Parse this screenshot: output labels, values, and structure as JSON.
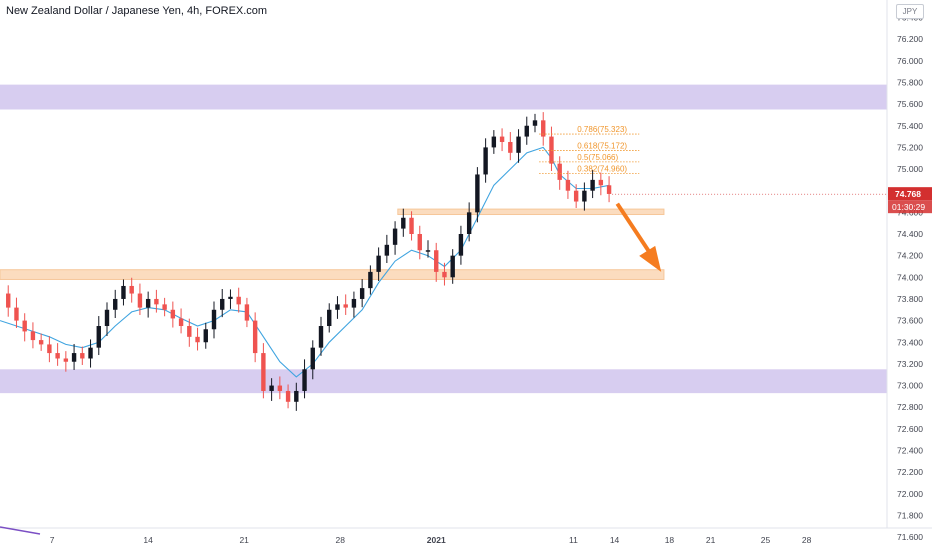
{
  "title": "New Zealand Dollar / Japanese Yen, 4h, FOREX.com",
  "currency_badge": "JPY",
  "colors": {
    "up_candle": "#131722",
    "down_candle": "#ef5350",
    "ma_line": "#3fa4e0",
    "resistance_zone": "#d7cdf0",
    "support_zone": "#fbdcbf",
    "fib": "#f0962c",
    "arrow": "#f57c1f",
    "price_badge": "#d32f2f"
  },
  "chart_data": {
    "type": "line",
    "title": "",
    "xlabel": "",
    "ylabel": "",
    "ylim": [
      71.4,
      76.5
    ],
    "y_ticks": [
      "76.400",
      "76.200",
      "76.000",
      "75.800",
      "75.600",
      "75.400",
      "75.200",
      "75.000",
      "74.800",
      "74.600",
      "74.400",
      "74.200",
      "74.000",
      "73.800",
      "73.600",
      "73.400",
      "73.200",
      "73.000",
      "72.800",
      "72.600",
      "72.400",
      "72.200",
      "72.000",
      "71.800",
      "71.600"
    ],
    "x_ticks": [
      {
        "label": "7",
        "day": 7
      },
      {
        "label": "14",
        "day": 14
      },
      {
        "label": "21",
        "day": 21
      },
      {
        "label": "28",
        "day": 28
      },
      {
        "label": "2021",
        "day": 35
      },
      {
        "label": "11",
        "day": 45
      },
      {
        "label": "14",
        "day": 48
      },
      {
        "label": "18",
        "day": 52
      },
      {
        "label": "21",
        "day": 55
      },
      {
        "label": "25",
        "day": 59
      },
      {
        "label": "28",
        "day": 62
      }
    ],
    "x_range": [
      3.2,
      65.6
    ],
    "close_path": [
      [
        3.2,
        73.85
      ],
      [
        3.8,
        73.72
      ],
      [
        4.4,
        73.6
      ],
      [
        5.0,
        73.5
      ],
      [
        5.6,
        73.42
      ],
      [
        6.2,
        73.38
      ],
      [
        6.8,
        73.3
      ],
      [
        7.4,
        73.25
      ],
      [
        8.0,
        73.22
      ],
      [
        8.6,
        73.3
      ],
      [
        9.2,
        73.25
      ],
      [
        9.8,
        73.35
      ],
      [
        10.4,
        73.55
      ],
      [
        11.0,
        73.7
      ],
      [
        11.6,
        73.8
      ],
      [
        12.2,
        73.92
      ],
      [
        12.8,
        73.85
      ],
      [
        13.4,
        73.72
      ],
      [
        14.0,
        73.8
      ],
      [
        14.6,
        73.75
      ],
      [
        15.2,
        73.7
      ],
      [
        15.8,
        73.62
      ],
      [
        16.4,
        73.55
      ],
      [
        17.0,
        73.45
      ],
      [
        17.6,
        73.4
      ],
      [
        18.2,
        73.52
      ],
      [
        18.8,
        73.7
      ],
      [
        19.4,
        73.8
      ],
      [
        20.0,
        73.82
      ],
      [
        20.6,
        73.75
      ],
      [
        21.2,
        73.6
      ],
      [
        21.8,
        73.3
      ],
      [
        22.4,
        72.95
      ],
      [
        23.0,
        73.0
      ],
      [
        23.6,
        72.95
      ],
      [
        24.2,
        72.85
      ],
      [
        24.8,
        72.95
      ],
      [
        25.4,
        73.15
      ],
      [
        26.0,
        73.35
      ],
      [
        26.6,
        73.55
      ],
      [
        27.2,
        73.7
      ],
      [
        27.8,
        73.75
      ],
      [
        28.4,
        73.72
      ],
      [
        29.0,
        73.8
      ],
      [
        29.6,
        73.9
      ],
      [
        30.2,
        74.05
      ],
      [
        30.8,
        74.2
      ],
      [
        31.4,
        74.3
      ],
      [
        32.0,
        74.45
      ],
      [
        32.6,
        74.55
      ],
      [
        33.2,
        74.4
      ],
      [
        33.8,
        74.25
      ],
      [
        34.4,
        74.25
      ],
      [
        35.0,
        74.05
      ],
      [
        35.6,
        74.0
      ],
      [
        36.2,
        74.2
      ],
      [
        36.8,
        74.4
      ],
      [
        37.4,
        74.6
      ],
      [
        38.0,
        74.95
      ],
      [
        38.6,
        75.2
      ],
      [
        39.2,
        75.3
      ],
      [
        39.8,
        75.25
      ],
      [
        40.4,
        75.15
      ],
      [
        41.0,
        75.3
      ],
      [
        41.6,
        75.4
      ],
      [
        42.2,
        75.45
      ],
      [
        42.8,
        75.3
      ],
      [
        43.4,
        75.05
      ],
      [
        44.0,
        74.9
      ],
      [
        44.6,
        74.8
      ],
      [
        45.2,
        74.7
      ],
      [
        45.8,
        74.8
      ],
      [
        46.4,
        74.9
      ],
      [
        47.0,
        74.85
      ],
      [
        47.6,
        74.77
      ]
    ],
    "ma_path": [
      [
        3.2,
        73.6
      ],
      [
        4.4,
        73.55
      ],
      [
        5.6,
        73.5
      ],
      [
        6.8,
        73.45
      ],
      [
        8.0,
        73.38
      ],
      [
        9.2,
        73.35
      ],
      [
        10.4,
        73.4
      ],
      [
        11.6,
        73.55
      ],
      [
        12.8,
        73.68
      ],
      [
        14.0,
        73.72
      ],
      [
        15.2,
        73.7
      ],
      [
        16.4,
        73.62
      ],
      [
        17.6,
        73.55
      ],
      [
        18.8,
        73.6
      ],
      [
        20.0,
        73.7
      ],
      [
        21.2,
        73.68
      ],
      [
        22.4,
        73.45
      ],
      [
        23.6,
        73.22
      ],
      [
        24.8,
        73.08
      ],
      [
        26.0,
        73.2
      ],
      [
        27.2,
        73.4
      ],
      [
        28.4,
        73.55
      ],
      [
        29.6,
        73.7
      ],
      [
        30.8,
        73.95
      ],
      [
        32.0,
        74.15
      ],
      [
        33.2,
        74.25
      ],
      [
        34.4,
        74.2
      ],
      [
        35.6,
        74.1
      ],
      [
        36.8,
        74.25
      ],
      [
        38.0,
        74.55
      ],
      [
        39.2,
        74.85
      ],
      [
        40.4,
        75.0
      ],
      [
        41.6,
        75.15
      ],
      [
        42.8,
        75.2
      ],
      [
        43.4,
        75.1
      ],
      [
        44.0,
        74.95
      ],
      [
        45.2,
        74.82
      ],
      [
        46.4,
        74.82
      ],
      [
        47.6,
        74.85
      ]
    ],
    "zones": [
      {
        "type": "resistance",
        "y_low": 75.55,
        "y_high": 75.78,
        "x_start": 0,
        "x_end": "full"
      },
      {
        "type": "support",
        "y_low": 74.58,
        "y_high": 74.63,
        "x_start": 32.2,
        "x_end": 51.6
      },
      {
        "type": "support",
        "y_low": 73.98,
        "y_high": 74.07,
        "x_start": 0,
        "x_end": 51.6
      },
      {
        "type": "resistance",
        "y_low": 72.93,
        "y_high": 73.15,
        "x_start": 0,
        "x_end": "full"
      }
    ],
    "fib_levels": [
      {
        "label": "0.786(75.323)",
        "value": 75.323
      },
      {
        "label": "0.618(75.172)",
        "value": 75.172
      },
      {
        "label": "0.5(75.066)",
        "value": 75.066
      },
      {
        "label": "0.382(74.960)",
        "value": 74.96
      }
    ],
    "fib_x_range": [
      42.5,
      49.8
    ],
    "arrow": {
      "from": [
        48.2,
        74.68
      ],
      "to": [
        51.4,
        74.05
      ]
    },
    "current_price": "74.768",
    "countdown": "01:30:29"
  }
}
